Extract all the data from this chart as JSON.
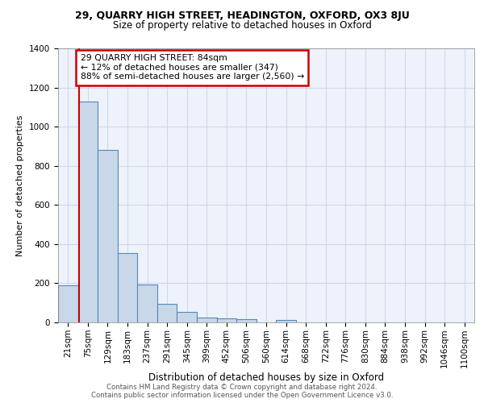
{
  "title1": "29, QUARRY HIGH STREET, HEADINGTON, OXFORD, OX3 8JU",
  "title2": "Size of property relative to detached houses in Oxford",
  "xlabel": "Distribution of detached houses by size in Oxford",
  "ylabel": "Number of detached properties",
  "categories": [
    "21sqm",
    "75sqm",
    "129sqm",
    "183sqm",
    "237sqm",
    "291sqm",
    "345sqm",
    "399sqm",
    "452sqm",
    "506sqm",
    "560sqm",
    "614sqm",
    "668sqm",
    "722sqm",
    "776sqm",
    "830sqm",
    "884sqm",
    "938sqm",
    "992sqm",
    "1046sqm",
    "1100sqm"
  ],
  "values": [
    190,
    1130,
    880,
    355,
    195,
    93,
    52,
    23,
    22,
    17,
    0,
    13,
    0,
    0,
    0,
    0,
    0,
    0,
    0,
    0,
    0
  ],
  "bar_color": "#c8d8e8",
  "bar_edge_color": "#5588bb",
  "redline_x": 0.57,
  "annotation_text": "29 QUARRY HIGH STREET: 84sqm\n← 12% of detached houses are smaller (347)\n88% of semi-detached houses are larger (2,560) →",
  "annotation_box_color": "#ffffff",
  "annotation_box_edge": "#cc0000",
  "footer": "Contains HM Land Registry data © Crown copyright and database right 2024.\nContains public sector information licensed under the Open Government Licence v3.0.",
  "ylim": [
    0,
    1400
  ],
  "bg_color": "#eef2fa",
  "grid_color": "#d0d8ee"
}
